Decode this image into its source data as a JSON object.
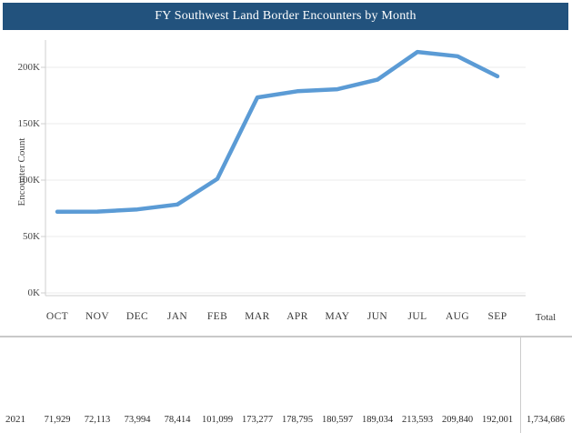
{
  "title": "FY Southwest Land Border Encounters by Month",
  "colors": {
    "header_bg": "#22527D",
    "line": "#5B9BD5",
    "gridline": "#EBEBEB",
    "axis": "#CFCFCF",
    "divider": "#C9C9C9"
  },
  "chart_data": {
    "type": "line",
    "x": [
      "OCT",
      "NOV",
      "DEC",
      "JAN",
      "FEB",
      "MAR",
      "APR",
      "MAY",
      "JUN",
      "JUL",
      "AUG",
      "SEP"
    ],
    "series": [
      {
        "name": "2021",
        "values": [
          71929,
          72113,
          73994,
          78414,
          101099,
          173277,
          178795,
          180597,
          189034,
          213593,
          209840,
          192001
        ]
      }
    ],
    "title": "FY Southwest Land Border Encounters by Month",
    "xlabel": "",
    "ylabel": "Encounter Count",
    "ylim": [
      0,
      224000
    ],
    "yticks": [
      "0K",
      "50K",
      "100K",
      "150K",
      "200K"
    ],
    "grid": true,
    "legend": "none"
  },
  "table": {
    "columns": [
      "OCT",
      "NOV",
      "DEC",
      "JAN",
      "FEB",
      "MAR",
      "APR",
      "MAY",
      "JUN",
      "JUL",
      "AUG",
      "SEP"
    ],
    "total_header": "Total",
    "rows": [
      {
        "year": "2021",
        "values": [
          "71,929",
          "72,113",
          "73,994",
          "78,414",
          "101,099",
          "173,277",
          "178,795",
          "180,597",
          "189,034",
          "213,593",
          "209,840",
          "192,001"
        ],
        "total": "1,734,686"
      }
    ]
  }
}
